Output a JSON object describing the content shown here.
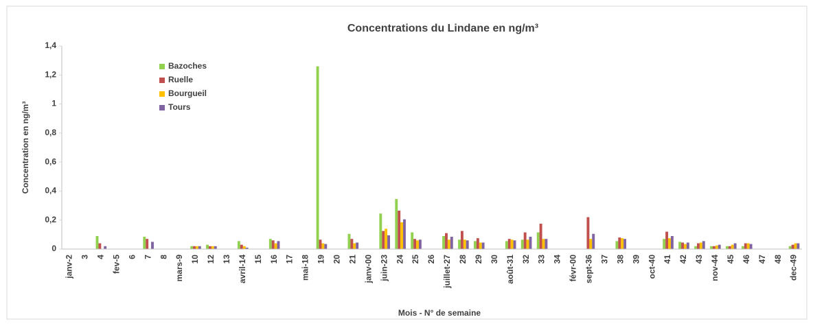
{
  "chart_data": {
    "type": "bar",
    "title": "Concentrations du Lindane en ng/m³",
    "xlabel": "Mois - N° de semaine",
    "ylabel": "Concentration en ng/m³",
    "categories": [
      "janv-2",
      "3",
      "4",
      "fev-5",
      "6",
      "7",
      "8",
      "mars-9",
      "10",
      "12",
      "13",
      "avril-14",
      "15",
      "16",
      "17",
      "mai-18",
      "19",
      "20",
      "21",
      "janv-00",
      "juin-23",
      "24",
      "25",
      "26",
      "juillet-27",
      "28",
      "29",
      "30",
      "août-31",
      "32",
      "33",
      "34",
      "févr-00",
      "sept-36",
      "37",
      "38",
      "39",
      "oct-40",
      "41",
      "42",
      "43",
      "nov-44",
      "45",
      "46",
      "47",
      "48",
      "dec-49"
    ],
    "series": [
      {
        "name": "Bazoches",
        "color": "#92d050",
        "values": [
          null,
          null,
          0.09,
          null,
          null,
          0.085,
          null,
          null,
          0.02,
          0.03,
          null,
          0.055,
          null,
          0.07,
          null,
          null,
          1.26,
          null,
          0.105,
          null,
          0.245,
          0.345,
          0.115,
          null,
          0.09,
          0.065,
          0.055,
          null,
          0.055,
          0.065,
          0.115,
          null,
          null,
          null,
          null,
          0.055,
          null,
          null,
          0.07,
          0.05,
          0.02,
          0.02,
          0.02,
          0.02,
          null,
          null,
          0.02
        ]
      },
      {
        "name": "Ruelle",
        "color": "#c0504d",
        "values": [
          null,
          null,
          0.04,
          null,
          null,
          0.07,
          null,
          null,
          0.02,
          0.02,
          null,
          0.03,
          null,
          0.06,
          null,
          null,
          0.065,
          null,
          0.07,
          null,
          0.125,
          0.265,
          0.07,
          null,
          0.11,
          0.125,
          0.075,
          null,
          0.07,
          0.115,
          0.175,
          null,
          null,
          0.22,
          null,
          0.08,
          null,
          null,
          0.12,
          0.045,
          0.04,
          0.02,
          0.02,
          0.04,
          null,
          null,
          0.03
        ]
      },
      {
        "name": "Bourgueil",
        "color": "#ffc000",
        "values": [
          null,
          null,
          null,
          null,
          null,
          null,
          null,
          null,
          0.02,
          0.02,
          null,
          0.02,
          null,
          0.04,
          null,
          null,
          0.04,
          null,
          0.04,
          null,
          0.14,
          0.185,
          0.06,
          null,
          0.065,
          0.065,
          0.045,
          null,
          0.065,
          0.065,
          0.07,
          null,
          null,
          0.07,
          null,
          0.075,
          null,
          null,
          0.075,
          0.035,
          0.045,
          0.025,
          0.03,
          0.04,
          null,
          null,
          0.04
        ]
      },
      {
        "name": "Tours",
        "color": "#8064a2",
        "values": [
          null,
          null,
          0.02,
          null,
          null,
          0.05,
          null,
          null,
          0.02,
          0.02,
          null,
          0.01,
          null,
          0.055,
          null,
          null,
          0.035,
          null,
          0.045,
          null,
          0.095,
          0.205,
          0.065,
          null,
          0.085,
          0.06,
          0.045,
          null,
          0.06,
          0.085,
          0.07,
          null,
          null,
          0.105,
          null,
          0.07,
          null,
          null,
          0.09,
          0.045,
          0.055,
          0.03,
          0.04,
          0.035,
          null,
          null,
          0.04
        ]
      }
    ],
    "ylim": [
      0,
      1.4
    ],
    "yticks": [
      0,
      {
        "value": 0.2,
        "label": "0,2"
      },
      {
        "value": 0.4,
        "label": "0,4"
      },
      {
        "value": 0.6,
        "label": "0,6"
      },
      {
        "value": 0.8,
        "label": "0,8"
      },
      1,
      {
        "value": 1.2,
        "label": "1,2"
      },
      {
        "value": 1.4,
        "label": "1,4"
      }
    ],
    "grid": false,
    "legend": "upper left"
  }
}
